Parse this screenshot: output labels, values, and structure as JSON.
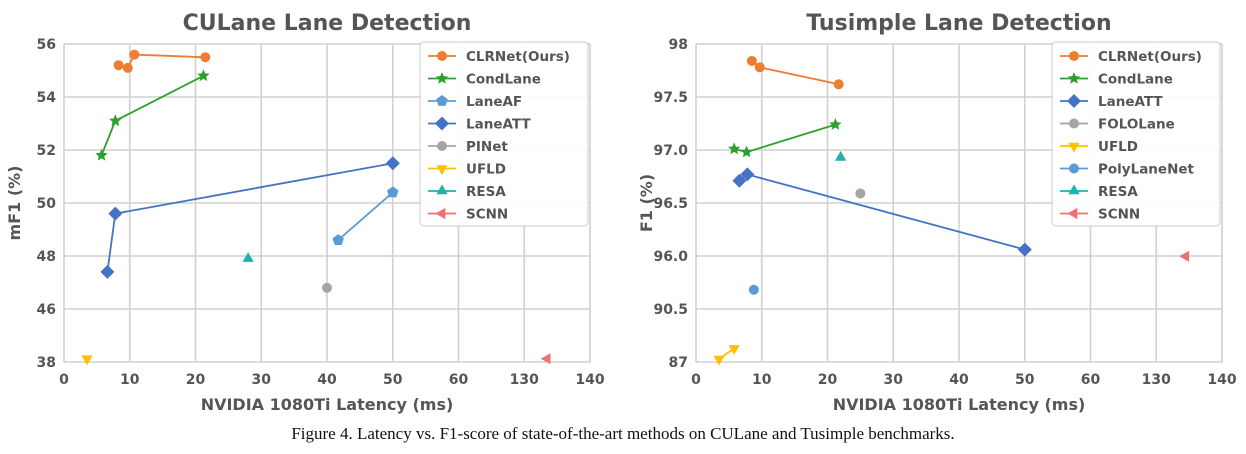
{
  "chart_data": [
    {
      "type": "line",
      "title": "CULane Lane Detection",
      "xlabel": "NVIDIA 1080Ti Latency (ms)",
      "ylabel": "mF1 (%)",
      "x_ticks": [
        "0",
        "10",
        "20",
        "30",
        "40",
        "50",
        "60",
        "130",
        "140"
      ],
      "y_ticks": [
        "38",
        "46",
        "48",
        "50",
        "52",
        "54",
        "56"
      ],
      "grid": true,
      "legend_position": "top-right",
      "series": [
        {
          "name": "CLRNet(Ours)",
          "color": "#ED7D31",
          "marker": "circle",
          "x": [
            8.3,
            9.7,
            10.7,
            21.5
          ],
          "y": [
            55.2,
            55.1,
            55.6,
            55.5
          ]
        },
        {
          "name": "CondLane",
          "color": "#2CA02C",
          "marker": "star",
          "x": [
            5.7,
            7.8,
            21.2
          ],
          "y": [
            51.8,
            53.1,
            54.8
          ]
        },
        {
          "name": "LaneAF",
          "color": "#5B9BD5",
          "marker": "pentagon",
          "x": [
            41.7,
            50.0
          ],
          "y": [
            48.6,
            50.4
          ]
        },
        {
          "name": "LaneATT",
          "color": "#4472C4",
          "marker": "diamond",
          "x": [
            6.6,
            7.8,
            50.0
          ],
          "y": [
            47.4,
            49.6,
            51.5
          ]
        },
        {
          "name": "PINet",
          "color": "#A5A5A5",
          "marker": "circle",
          "x": [
            40.0
          ],
          "y": [
            46.8
          ]
        },
        {
          "name": "UFLD",
          "color": "#FFC000",
          "marker": "triangle-down",
          "x": [
            3.5
          ],
          "y": [
            38.5
          ]
        },
        {
          "name": "RESA",
          "color": "#20B2AA",
          "marker": "triangle-up",
          "x": [
            28.0
          ],
          "y": [
            47.9
          ]
        },
        {
          "name": "SCNN",
          "color": "#F07070",
          "marker": "triangle-left",
          "x": [
            133.5
          ],
          "y": [
            38.5
          ]
        }
      ]
    },
    {
      "type": "line",
      "title": "Tusimple Lane Detection",
      "xlabel": "NVIDIA 1080Ti Latency (ms)",
      "ylabel": "F1 (%)",
      "x_ticks": [
        "0",
        "10",
        "20",
        "30",
        "40",
        "50",
        "60",
        "130",
        "140"
      ],
      "y_ticks": [
        "87",
        "90.5",
        "96.0",
        "96.5",
        "97.0",
        "97.5",
        "98"
      ],
      "grid": true,
      "legend_position": "top-right",
      "series": [
        {
          "name": "CLRNet(Ours)",
          "color": "#ED7D31",
          "marker": "circle",
          "x": [
            8.5,
            9.7,
            21.7
          ],
          "y": [
            97.84,
            97.78,
            97.62
          ]
        },
        {
          "name": "CondLane",
          "color": "#2CA02C",
          "marker": "star",
          "x": [
            5.8,
            7.7,
            21.2
          ],
          "y": [
            97.01,
            96.98,
            97.24
          ]
        },
        {
          "name": "LaneATT",
          "color": "#4472C4",
          "marker": "diamond",
          "x": [
            6.6,
            7.8,
            50.0
          ],
          "y": [
            96.71,
            96.77,
            96.06
          ]
        },
        {
          "name": "FOLOLane",
          "color": "#A5A5A5",
          "marker": "circle",
          "x": [
            25.0
          ],
          "y": [
            96.59
          ]
        },
        {
          "name": "UFLD",
          "color": "#FFC000",
          "marker": "triangle-down",
          "x": [
            3.5,
            5.8
          ],
          "y": [
            87.2,
            87.9
          ]
        },
        {
          "name": "PolyLaneNet",
          "color": "#5B9BD5",
          "marker": "circle",
          "x": [
            8.8
          ],
          "y": [
            92.5
          ]
        },
        {
          "name": "RESA",
          "color": "#20B2AA",
          "marker": "triangle-up",
          "x": [
            22.0
          ],
          "y": [
            96.93
          ]
        },
        {
          "name": "SCNN",
          "color": "#F07070",
          "marker": "triangle-left",
          "x": [
            134.5
          ],
          "y": [
            95.97
          ]
        }
      ]
    }
  ],
  "caption": "Figure 4. Latency vs. F1-score of state-of-the-art methods on CULane and Tusimple benchmarks."
}
